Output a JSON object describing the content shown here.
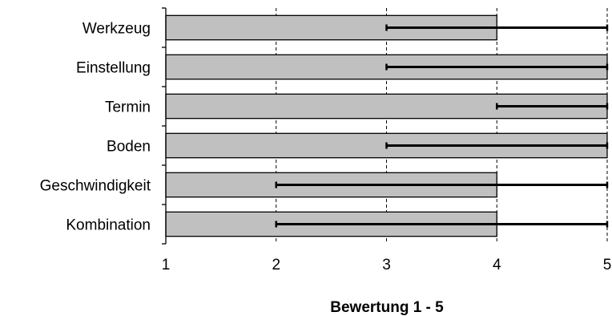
{
  "chart_data": {
    "type": "bar",
    "orientation": "horizontal",
    "categories": [
      "Werkzeug",
      "Einstellung",
      "Termin",
      "Boden",
      "Geschwindigkeit",
      "Kombination"
    ],
    "values": [
      4,
      5,
      5,
      5,
      4,
      4
    ],
    "error_range": [
      [
        3,
        5
      ],
      [
        3,
        5
      ],
      [
        4,
        5
      ],
      [
        3,
        5
      ],
      [
        2,
        5
      ],
      [
        2,
        5
      ]
    ],
    "xlim": [
      1,
      5
    ],
    "xticks": [
      1,
      2,
      3,
      4,
      5
    ],
    "xlabel": "Bewertung 1 - 5",
    "ylabel": "",
    "title": "",
    "grid": "vertical dashed",
    "colors": {
      "bar_fill": "#c0c0c0",
      "bar_stroke": "#000000",
      "error_bar": "#000000",
      "grid": "#000000"
    }
  }
}
